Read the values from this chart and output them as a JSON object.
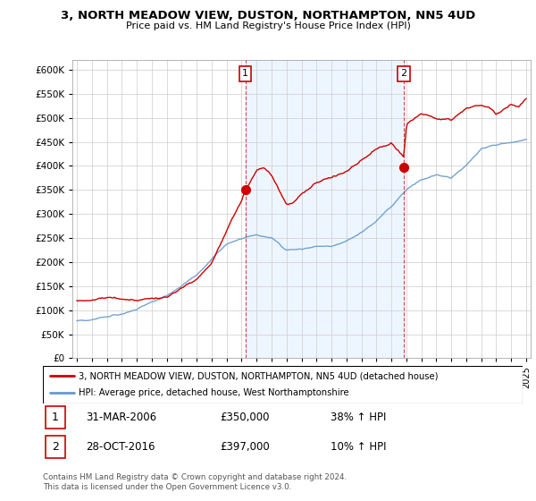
{
  "title": "3, NORTH MEADOW VIEW, DUSTON, NORTHAMPTON, NN5 4UD",
  "subtitle": "Price paid vs. HM Land Registry's House Price Index (HPI)",
  "legend_line1": "3, NORTH MEADOW VIEW, DUSTON, NORTHAMPTON, NN5 4UD (detached house)",
  "legend_line2": "HPI: Average price, detached house, West Northamptonshire",
  "footnote": "Contains HM Land Registry data © Crown copyright and database right 2024.\nThis data is licensed under the Open Government Licence v3.0.",
  "purchase1_date": "31-MAR-2006",
  "purchase1_price": "£350,000",
  "purchase1_hpi": "38% ↑ HPI",
  "purchase2_date": "28-OCT-2016",
  "purchase2_price": "£397,000",
  "purchase2_hpi": "10% ↑ HPI",
  "red_color": "#cc0000",
  "blue_color": "#6699cc",
  "blue_fill": "#ddeeff",
  "ylim": [
    0,
    620000
  ],
  "yticks": [
    0,
    50000,
    100000,
    150000,
    200000,
    250000,
    300000,
    350000,
    400000,
    450000,
    500000,
    550000,
    600000
  ],
  "purchase1_x": 2006.25,
  "purchase1_y": 350000,
  "purchase2_x": 2016.83,
  "purchase2_y": 397000,
  "xlim_left": 1994.7,
  "xlim_right": 2025.3
}
